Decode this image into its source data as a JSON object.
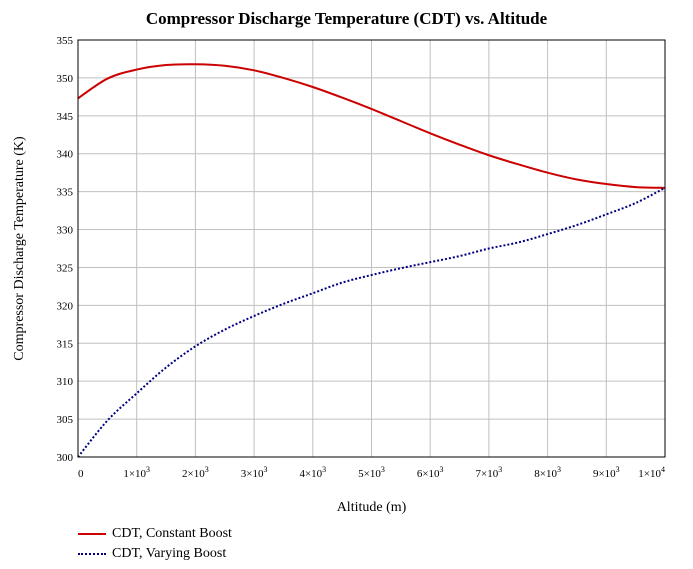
{
  "chart_data": {
    "type": "line",
    "title": "Compressor Discharge Temperature (CDT) vs. Altitude",
    "xlabel": "Altitude (m)",
    "ylabel": "Compressor Discharge Temperature (K)",
    "xlim": [
      0,
      10000
    ],
    "ylim": [
      300,
      355
    ],
    "grid": true,
    "legend_position": "bottom-left",
    "x_ticks": [
      {
        "value": 0,
        "base": "0",
        "exp": ""
      },
      {
        "value": 1000,
        "base": "1×10",
        "exp": "3"
      },
      {
        "value": 2000,
        "base": "2×10",
        "exp": "3"
      },
      {
        "value": 3000,
        "base": "3×10",
        "exp": "3"
      },
      {
        "value": 4000,
        "base": "4×10",
        "exp": "3"
      },
      {
        "value": 5000,
        "base": "5×10",
        "exp": "3"
      },
      {
        "value": 6000,
        "base": "6×10",
        "exp": "3"
      },
      {
        "value": 7000,
        "base": "7×10",
        "exp": "3"
      },
      {
        "value": 8000,
        "base": "8×10",
        "exp": "3"
      },
      {
        "value": 9000,
        "base": "9×10",
        "exp": "3"
      },
      {
        "value": 10000,
        "base": "1×10",
        "exp": "4"
      }
    ],
    "y_ticks": [
      300,
      305,
      310,
      315,
      320,
      325,
      330,
      335,
      340,
      345,
      350,
      355
    ],
    "x": [
      0,
      500,
      1000,
      1500,
      2000,
      2500,
      3000,
      3500,
      4000,
      4500,
      5000,
      5500,
      6000,
      6500,
      7000,
      7500,
      8000,
      8500,
      9000,
      9500,
      10000
    ],
    "series": [
      {
        "name": "CDT, Constant Boost",
        "color": "#cc0000",
        "style": "solid",
        "values": [
          347.3,
          349.9,
          351.1,
          351.7,
          351.8,
          351.6,
          351.0,
          350.0,
          348.8,
          347.4,
          345.9,
          344.3,
          342.7,
          341.2,
          339.8,
          338.6,
          337.5,
          336.6,
          336.0,
          335.6,
          335.5
        ]
      },
      {
        "name": "CDT, Varying Boost",
        "color": "#000080",
        "style": "dotted",
        "values": [
          300.0,
          304.8,
          308.4,
          311.8,
          314.6,
          316.8,
          318.6,
          320.2,
          321.6,
          323.0,
          324.0,
          324.9,
          325.7,
          326.5,
          327.5,
          328.3,
          329.4,
          330.6,
          332.0,
          333.5,
          335.5
        ]
      }
    ]
  }
}
